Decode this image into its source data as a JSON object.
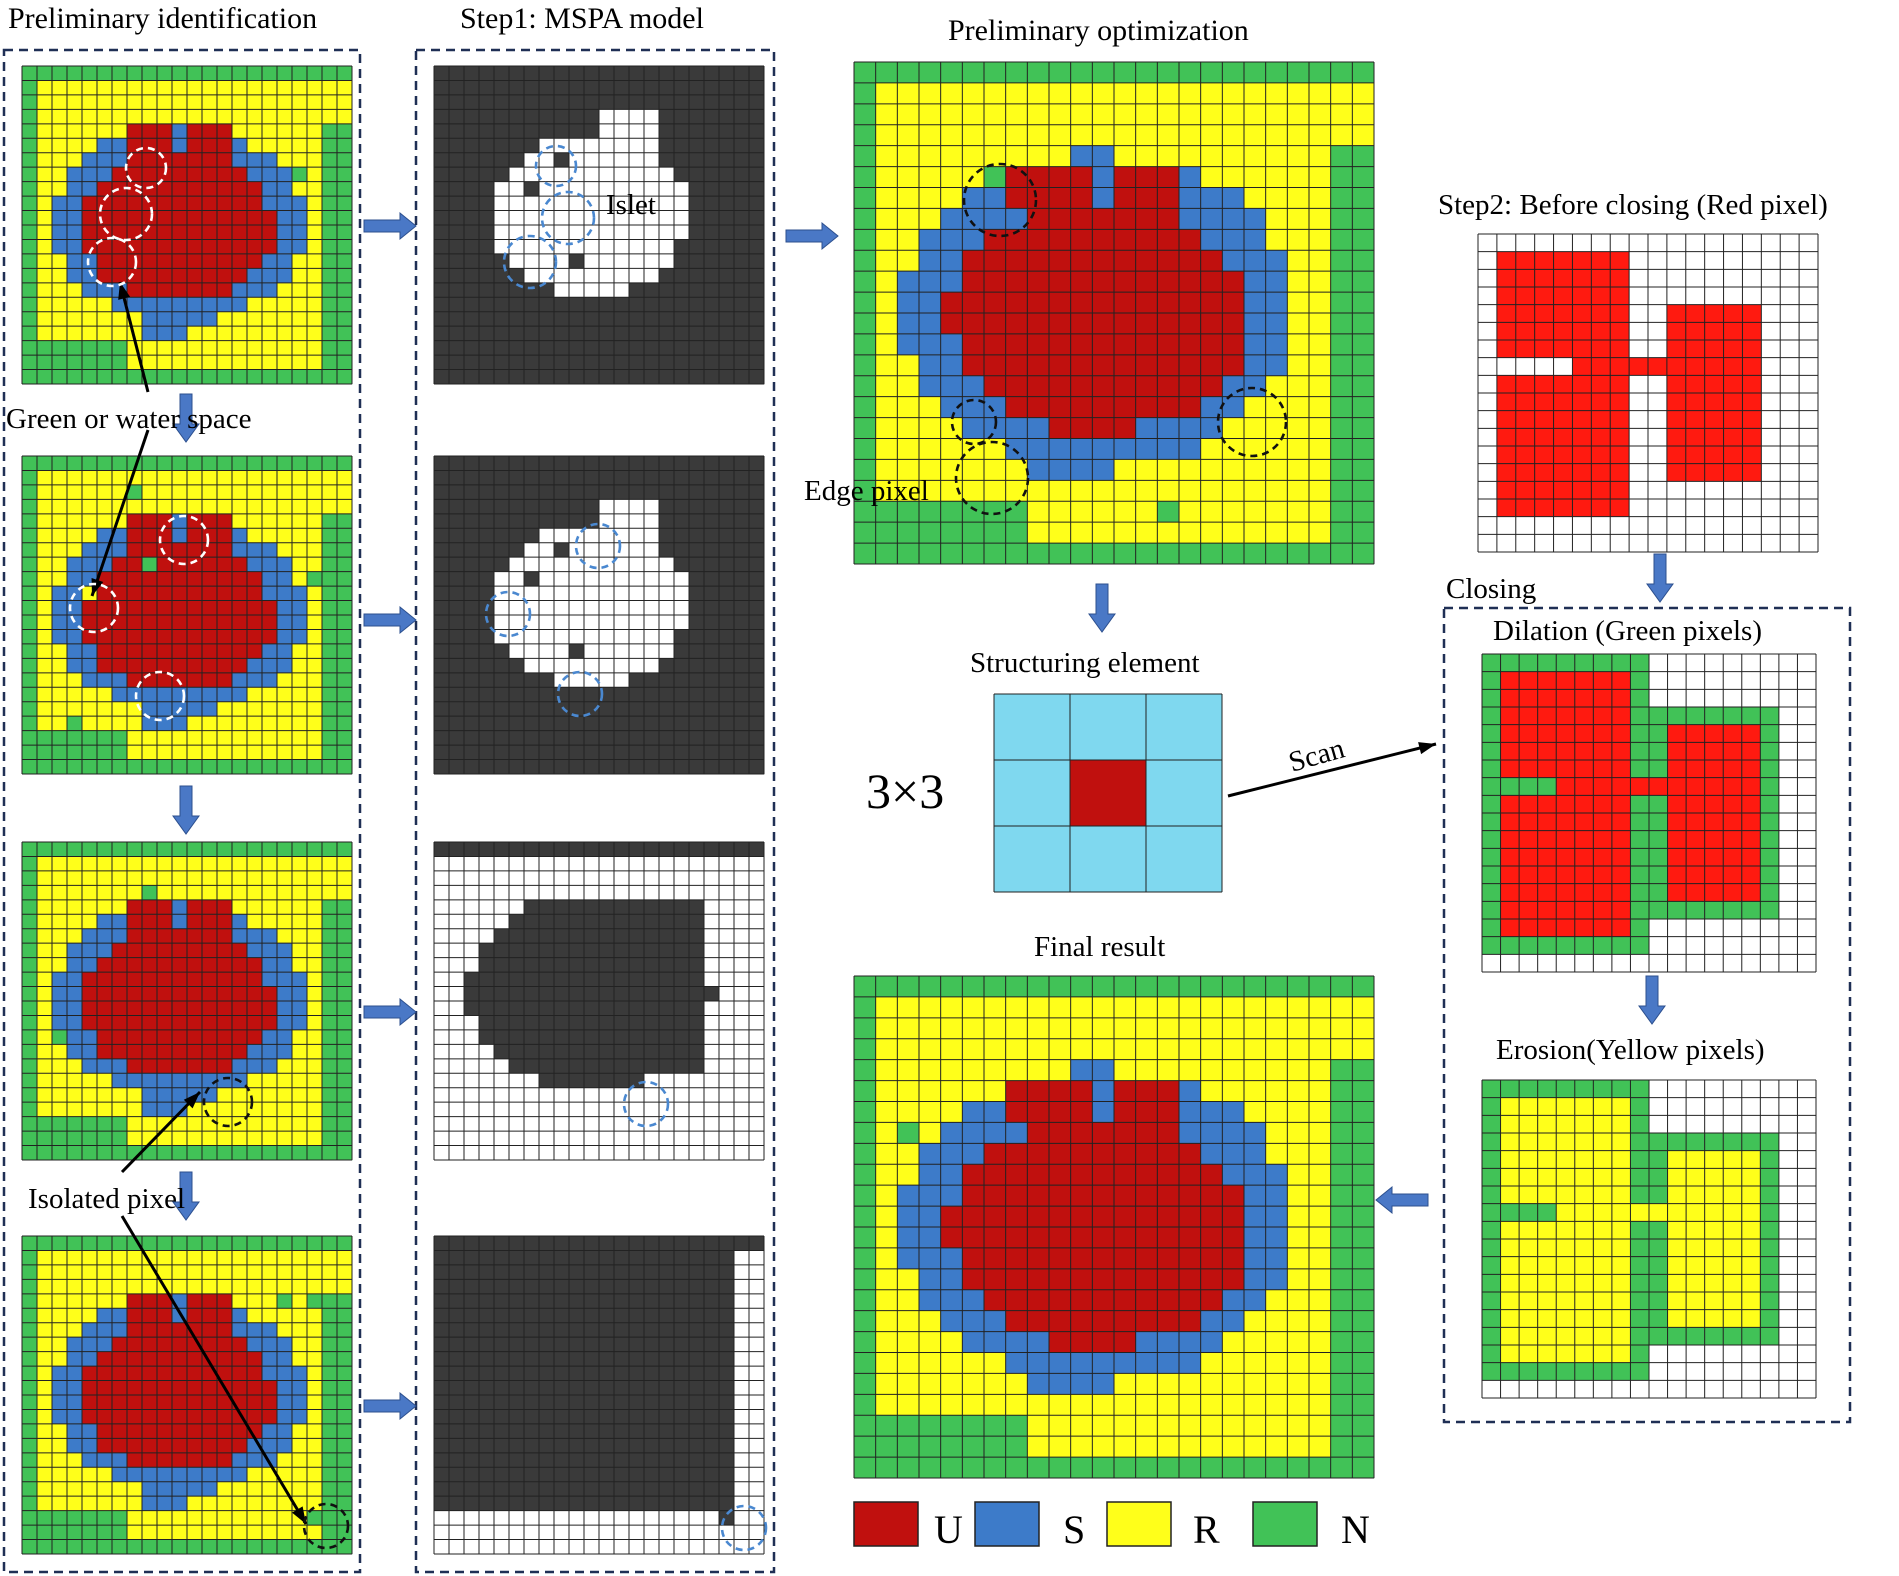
{
  "labels": {
    "preliminary_identification": "Preliminary identification",
    "step1": "Step1: MSPA model",
    "preliminary_optimization": "Preliminary optimization",
    "step2": "Step2: Before closing  (Red pixel)",
    "closing": "Closing",
    "dilation": "Dilation (Green pixels)",
    "erosion": "Erosion(Yellow pixels)",
    "structuring_element": "Structuring element",
    "three_by_three": "3×3",
    "scan": "Scan",
    "final_result": "Final result",
    "islet": "Islet",
    "edge_pixel": "Edge pixel",
    "green_or_water": "Green or water space",
    "isolated_pixel": "Isolated pixel"
  },
  "legend": [
    {
      "key": "U",
      "color": "#c0100e"
    },
    {
      "key": "S",
      "color": "#3d7bc9"
    },
    {
      "key": "R",
      "color": "#ffff1a"
    },
    {
      "key": "N",
      "color": "#41c257"
    }
  ],
  "colors": {
    "grid_line": "#222222",
    "mspa_dark": "#3a3a3a",
    "mspa_light": "#ffffff",
    "bright_red": "#ff1a10",
    "struct_cell": "#7fd8ef",
    "arrow_blue": "#4a78c6",
    "dashed_frame": "#1f2f55",
    "circle_white": "#ffffff",
    "circle_blue": "#4a88d0",
    "circle_black": "#111111"
  }
}
